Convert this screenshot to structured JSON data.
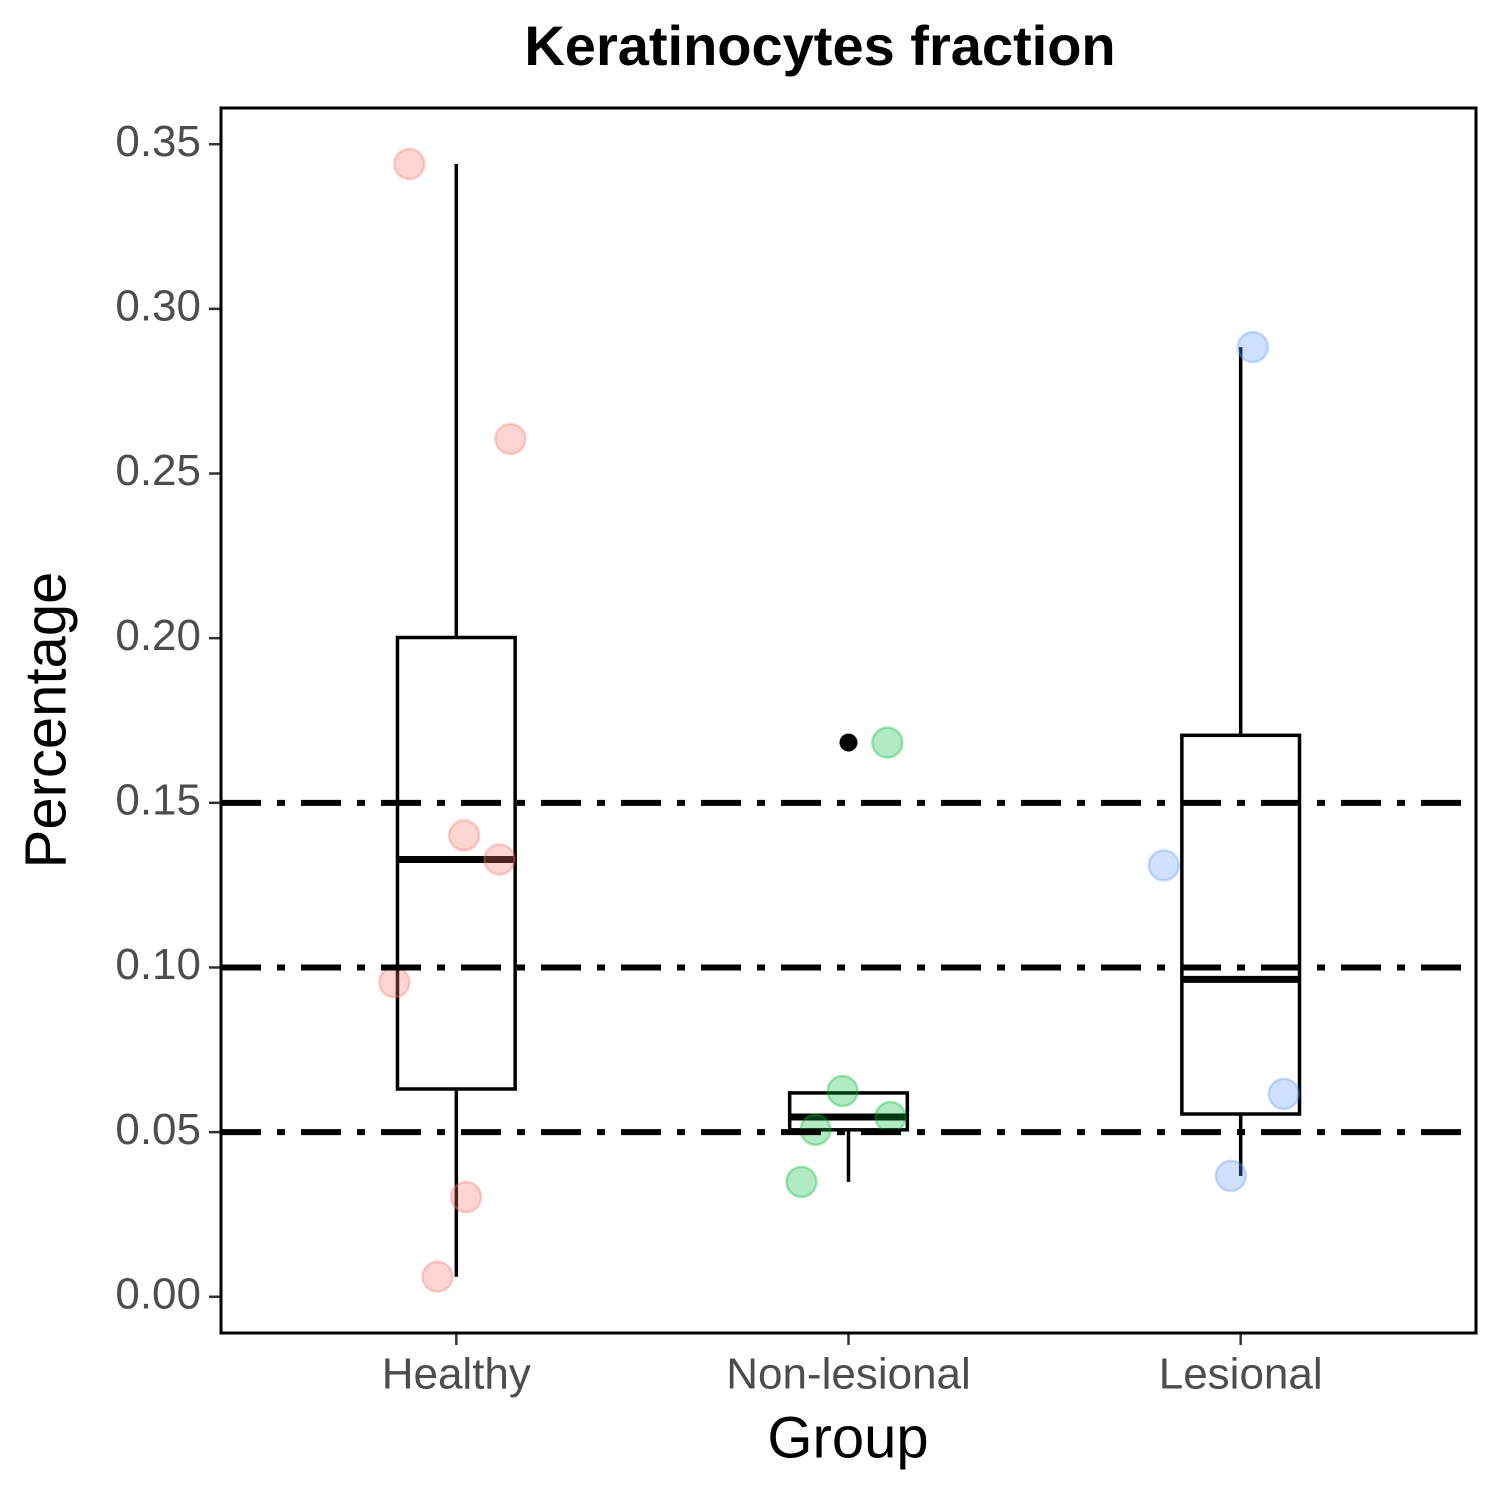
{
  "chart_data": {
    "type": "box",
    "title": "Keratinocytes fraction",
    "x_label": "Group",
    "y_label": "Percentage",
    "categories": [
      "Healthy",
      "Non-lesional",
      "Lesional"
    ],
    "colors": [
      "#F8766D",
      "#00BA38",
      "#619CFF"
    ],
    "boxes": [
      {
        "whislo": 0.0061,
        "q1": 0.0631,
        "med": 0.1328,
        "q3": 0.2002,
        "whishi": 0.344,
        "outliers": []
      },
      {
        "whislo": 0.0349,
        "q1": 0.0507,
        "med": 0.0546,
        "q3": 0.0619,
        "whishi": 0.0619,
        "outliers": [
          0.1683
        ]
      },
      {
        "whislo": 0.0367,
        "q1": 0.0555,
        "med": 0.0964,
        "q3": 0.1705,
        "whishi": 0.2884,
        "outliers": []
      }
    ],
    "points": [
      [
        0.344,
        0.2605,
        0.1401,
        0.1328,
        0.0955,
        0.0303,
        0.0061
      ],
      [
        0.1683,
        0.0625,
        0.0507,
        0.0546,
        0.0349
      ],
      [
        0.2884,
        0.131,
        0.0616,
        0.0367
      ]
    ],
    "hlines": [
      0.05,
      0.1,
      0.15
    ],
    "ylim": [
      -0.011,
      0.361
    ],
    "yticks": [
      {
        "value": 0,
        "label": "0.00"
      },
      0.05,
      {
        "value": 0.1,
        "label": "0.10"
      },
      0.15,
      {
        "value": 0.2,
        "label": "0.20"
      },
      0.25,
      {
        "value": 0.3,
        "label": "0.30"
      },
      0.35
    ],
    "grid": false
  }
}
